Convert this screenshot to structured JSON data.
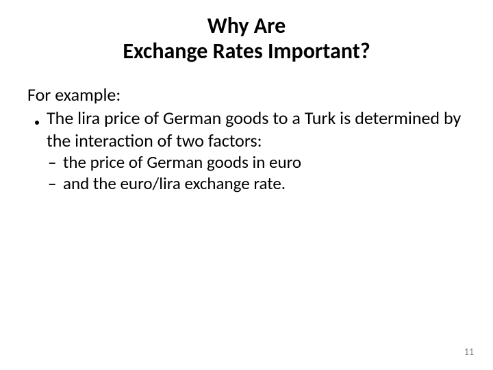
{
  "slide": {
    "title_line1": "Why Are",
    "title_line2": "Exchange Rates Important?",
    "title_fontsize": "32px",
    "title_color": "#000000",
    "intro": "For example:",
    "intro_fontsize": "26px",
    "bullet_text": "The lira price of German goods to a Turk is determined by the interaction of two factors:",
    "bullet_fontsize": "26px",
    "sub1_dash": "–",
    "sub1_text": "the price of German goods in euro",
    "sub2_dash": "–",
    "sub2_text": "and the euro/lira exchange rate.",
    "sub_fontsize": "25px",
    "page_number": "11",
    "page_number_fontsize": "14px",
    "page_number_color": "#7f7f7f",
    "background_color": "#ffffff"
  }
}
